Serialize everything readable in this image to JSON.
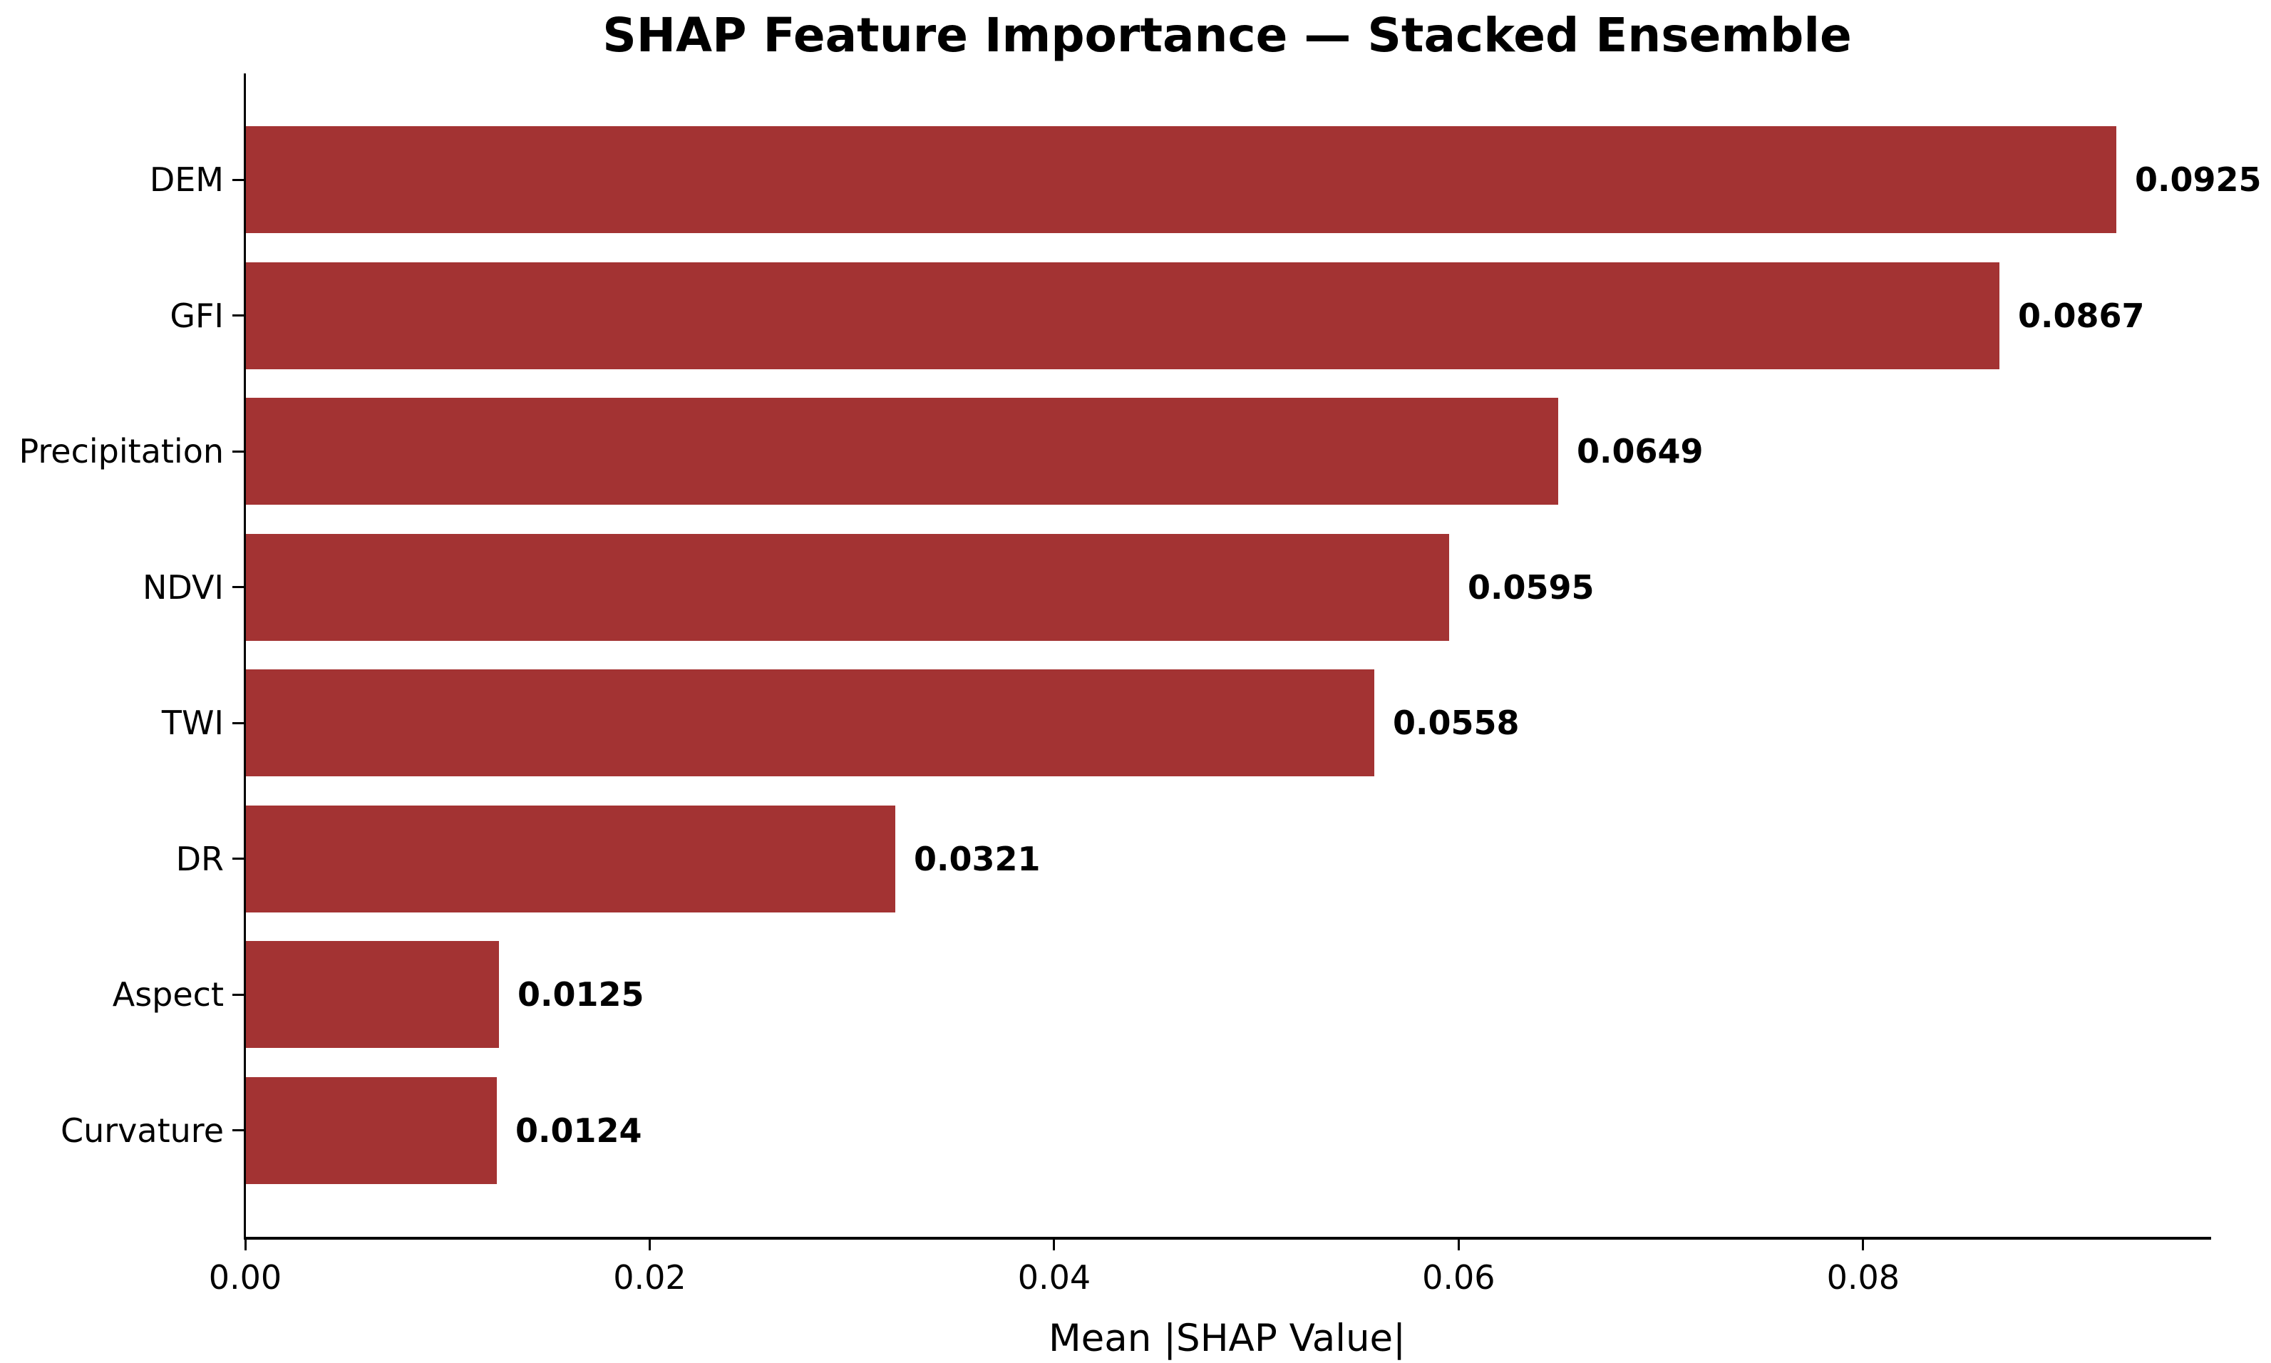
{
  "chart_data": {
    "type": "bar",
    "orientation": "horizontal",
    "title": "SHAP Feature Importance — Stacked Ensemble",
    "xlabel": "Mean |SHAP Value|",
    "categories": [
      "DEM",
      "GFI",
      "Precipitation",
      "NDVI",
      "TWI",
      "DR",
      "Aspect",
      "Curvature"
    ],
    "values": [
      0.0925,
      0.0867,
      0.0649,
      0.0595,
      0.0558,
      0.0321,
      0.0125,
      0.0124
    ],
    "value_labels": [
      "0.0925",
      "0.0867",
      "0.0649",
      "0.0595",
      "0.0558",
      "0.0321",
      "0.0125",
      "0.0124"
    ],
    "x_ticks": [
      {
        "value": 0.0,
        "label": "0.00"
      },
      {
        "value": 0.02,
        "label": "0.02"
      },
      {
        "value": 0.04,
        "label": "0.04"
      },
      {
        "value": 0.06,
        "label": "0.06"
      },
      {
        "value": 0.08,
        "label": "0.08"
      }
    ],
    "xlim": [
      0,
      0.0971
    ],
    "grid": false,
    "legend": null,
    "bar_color": "#A33333",
    "axis_color": "#000000",
    "text_color": "#000000",
    "background_color": "#ffffff"
  }
}
